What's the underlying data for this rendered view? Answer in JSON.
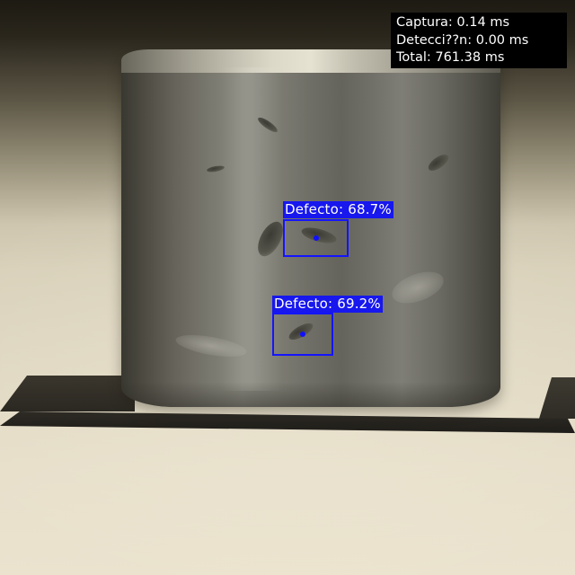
{
  "timing": {
    "capture": "Captura: 0.14 ms",
    "detection": "Detecci??n: 0.00 ms",
    "total": "Total: 761.38 ms"
  },
  "detections": [
    {
      "label": "Defecto: 68.7%",
      "class": "Defecto",
      "confidence": 0.687
    },
    {
      "label": "Defecto: 69.2%",
      "class": "Defecto",
      "confidence": 0.692
    }
  ],
  "colors": {
    "box": "#1414ff",
    "label_bg": "#1717ee",
    "label_text": "#ffffff",
    "panel_bg": "#000000"
  }
}
